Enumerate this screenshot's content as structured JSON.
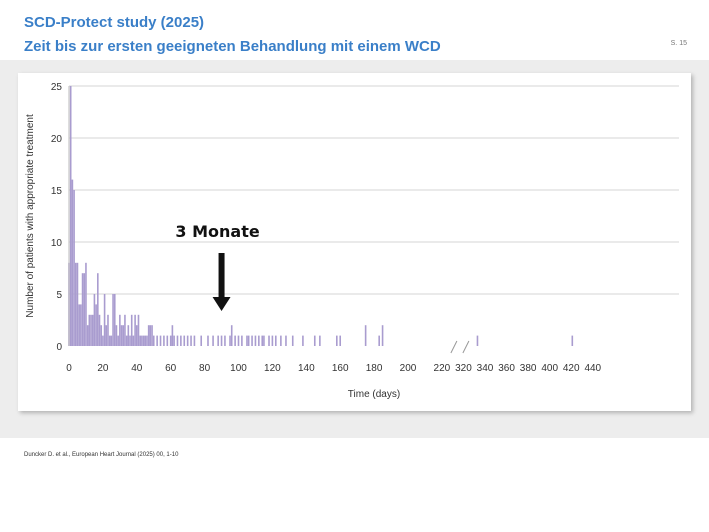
{
  "header": {
    "title": "SCD-Protect study (2025)",
    "subtitle": "Zeit bis zur ersten geeigneten Behandlung mit einem WCD",
    "page_number": "S. 15"
  },
  "footer": {
    "reference": "Duncker D. et al., European Heart Journal (2025) 00, 1-10"
  },
  "chart_data": {
    "type": "bar",
    "title": "",
    "xlabel": "Time (days)",
    "ylabel": "Number of patients with appropriate treatment",
    "ylim": [
      0,
      25
    ],
    "yticks": [
      0,
      5,
      10,
      15,
      20,
      25
    ],
    "xticks": [
      0,
      20,
      40,
      60,
      80,
      100,
      120,
      140,
      160,
      180,
      200,
      220,
      320,
      340,
      360,
      380,
      400,
      420,
      440
    ],
    "axis_break": "between 220 and 320",
    "grid": true,
    "bar_color": "#a99ccf",
    "annotation": {
      "text": "3 Monate",
      "x": 90,
      "arrow": "down"
    },
    "series": [
      {
        "x": [
          0,
          1,
          2,
          3,
          4,
          5,
          6,
          7,
          8,
          9,
          10,
          11,
          12,
          13,
          14,
          15,
          16,
          17,
          18,
          19,
          20,
          21,
          22,
          23,
          24,
          25,
          26,
          27,
          28,
          29,
          30,
          31,
          32,
          33,
          34,
          35,
          36,
          37,
          38,
          39,
          40,
          41,
          42,
          43,
          44,
          45,
          46,
          47,
          48,
          49,
          50,
          52,
          54,
          56,
          58,
          60,
          61,
          62,
          64,
          66,
          68,
          70,
          72,
          74,
          78,
          82,
          85,
          88,
          90,
          92,
          95,
          96,
          98,
          100,
          102,
          105,
          106,
          108,
          110,
          112,
          114,
          115,
          118,
          120,
          122,
          125,
          128,
          132,
          138,
          145,
          148,
          158,
          160,
          175,
          183,
          185,
          333,
          421
        ],
        "y": [
          8,
          25,
          16,
          15,
          8,
          8,
          4,
          4,
          7,
          7,
          8,
          2,
          3,
          3,
          3,
          5,
          4,
          7,
          3,
          2,
          1,
          5,
          2,
          3,
          1,
          1,
          5,
          5,
          2,
          1,
          3,
          2,
          2,
          3,
          1,
          2,
          1,
          3,
          1,
          3,
          2,
          3,
          1,
          1,
          1,
          1,
          1,
          2,
          2,
          2,
          1,
          1,
          1,
          1,
          1,
          1,
          2,
          1,
          1,
          1,
          1,
          1,
          1,
          1,
          1,
          1,
          1,
          1,
          1,
          1,
          1,
          2,
          1,
          1,
          1,
          1,
          1,
          1,
          1,
          1,
          1,
          1,
          1,
          1,
          1,
          1,
          1,
          1,
          1,
          1,
          1,
          1,
          1,
          2,
          1,
          2,
          1,
          1
        ]
      }
    ]
  }
}
